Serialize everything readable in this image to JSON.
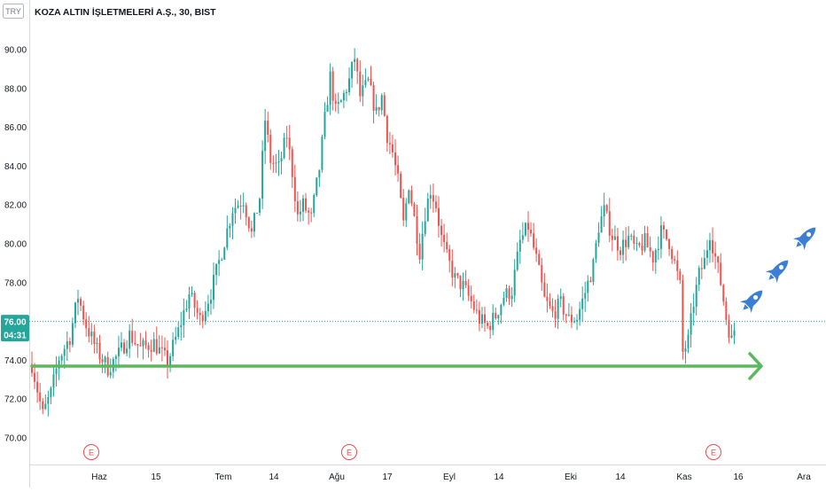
{
  "header": {
    "currency": "TRY",
    "symbol_title": "KOZA ALTIN İŞLETMELERİ A.Ş., 30, BIST"
  },
  "price_tag": {
    "last_price": "76.00",
    "countdown": "04:31"
  },
  "earnings_markers": [
    {
      "label": "E",
      "date": "Haz ~3"
    },
    {
      "label": "E",
      "date": "Ağu ~1"
    },
    {
      "label": "E",
      "date": "Kas ~10"
    }
  ],
  "colors": {
    "up": "#26a69a",
    "down": "#ef5350",
    "last_price_line": "#26a69a",
    "support_arrow": "#5cb85c",
    "rocket": "#3a7fd5",
    "earnings": "#f04a4a",
    "axis_text": "#131722",
    "grid": "#ffffff"
  },
  "chart_data": {
    "type": "candlestick",
    "title": "KOZA ALTIN İŞLETMELERİ A.Ş., 30, BIST",
    "interval": "30",
    "ylabel": "",
    "xlabel": "",
    "ylim": [
      69.0,
      91.8
    ],
    "y_ticks": [
      "70.00",
      "72.00",
      "74.00",
      "76.00",
      "78.00",
      "80.00",
      "82.00",
      "84.00",
      "86.00",
      "88.00",
      "90.00"
    ],
    "x_ticks": [
      "Haz",
      "15",
      "Tem",
      "14",
      "Ağu",
      "17",
      "Eyl",
      "14",
      "Eki",
      "14",
      "Kas",
      "16",
      "Ara"
    ],
    "last_price": 76.0,
    "support_level": 73.7,
    "price_path": [
      {
        "x": 0,
        "y": 73.8
      },
      {
        "x": 4,
        "y": 71.2
      },
      {
        "x": 7,
        "y": 72.3
      },
      {
        "x": 10,
        "y": 74.1
      },
      {
        "x": 14,
        "y": 75.2
      },
      {
        "x": 17,
        "y": 77.3
      },
      {
        "x": 20,
        "y": 75.8
      },
      {
        "x": 24,
        "y": 74.5
      },
      {
        "x": 28,
        "y": 73.6
      },
      {
        "x": 32,
        "y": 74.3
      },
      {
        "x": 36,
        "y": 75.3
      },
      {
        "x": 40,
        "y": 74.6
      },
      {
        "x": 45,
        "y": 74.9
      },
      {
        "x": 50,
        "y": 73.9
      },
      {
        "x": 54,
        "y": 75.5
      },
      {
        "x": 58,
        "y": 77.4
      },
      {
        "x": 62,
        "y": 76.1
      },
      {
        "x": 66,
        "y": 77.5
      },
      {
        "x": 70,
        "y": 79.6
      },
      {
        "x": 74,
        "y": 81.8
      },
      {
        "x": 78,
        "y": 82.3
      },
      {
        "x": 81,
        "y": 80.5
      },
      {
        "x": 84,
        "y": 82.4
      },
      {
        "x": 86,
        "y": 86.4
      },
      {
        "x": 88,
        "y": 84.3
      },
      {
        "x": 91,
        "y": 83.9
      },
      {
        "x": 94,
        "y": 85.6
      },
      {
        "x": 96,
        "y": 83.7
      },
      {
        "x": 98,
        "y": 81.4
      },
      {
        "x": 100,
        "y": 82.0
      },
      {
        "x": 103,
        "y": 81.3
      },
      {
        "x": 106,
        "y": 83.9
      },
      {
        "x": 108,
        "y": 86.4
      },
      {
        "x": 110,
        "y": 88.6
      },
      {
        "x": 112,
        "y": 86.8
      },
      {
        "x": 114,
        "y": 87.3
      },
      {
        "x": 117,
        "y": 88.4
      },
      {
        "x": 119,
        "y": 89.6
      },
      {
        "x": 121,
        "y": 87.6
      },
      {
        "x": 124,
        "y": 88.3
      },
      {
        "x": 127,
        "y": 86.7
      },
      {
        "x": 129,
        "y": 87.6
      },
      {
        "x": 131,
        "y": 85.6
      },
      {
        "x": 133,
        "y": 84.7
      },
      {
        "x": 135,
        "y": 83.2
      },
      {
        "x": 137,
        "y": 81.0
      },
      {
        "x": 139,
        "y": 83.1
      },
      {
        "x": 141,
        "y": 81.3
      },
      {
        "x": 143,
        "y": 79.6
      },
      {
        "x": 145,
        "y": 81.6
      },
      {
        "x": 147,
        "y": 82.8
      },
      {
        "x": 149,
        "y": 82.0
      },
      {
        "x": 151,
        "y": 80.3
      },
      {
        "x": 153,
        "y": 79.3
      },
      {
        "x": 156,
        "y": 78.2
      },
      {
        "x": 159,
        "y": 77.8
      },
      {
        "x": 162,
        "y": 77.0
      },
      {
        "x": 165,
        "y": 76.1
      },
      {
        "x": 168,
        "y": 75.7
      },
      {
        "x": 171,
        "y": 76.3
      },
      {
        "x": 174,
        "y": 77.3
      },
      {
        "x": 177,
        "y": 77.6
      },
      {
        "x": 180,
        "y": 80.1
      },
      {
        "x": 183,
        "y": 80.9
      },
      {
        "x": 186,
        "y": 79.2
      },
      {
        "x": 189,
        "y": 77.1
      },
      {
        "x": 192,
        "y": 76.4
      },
      {
        "x": 195,
        "y": 76.9
      },
      {
        "x": 198,
        "y": 76.1
      },
      {
        "x": 201,
        "y": 76.2
      },
      {
        "x": 204,
        "y": 77.5
      },
      {
        "x": 207,
        "y": 78.9
      },
      {
        "x": 209,
        "y": 80.9
      },
      {
        "x": 211,
        "y": 81.7
      },
      {
        "x": 214,
        "y": 80.4
      },
      {
        "x": 217,
        "y": 79.8
      },
      {
        "x": 220,
        "y": 80.3
      },
      {
        "x": 223,
        "y": 79.6
      },
      {
        "x": 226,
        "y": 80.1
      },
      {
        "x": 229,
        "y": 79.3
      },
      {
        "x": 232,
        "y": 80.6
      },
      {
        "x": 235,
        "y": 80.1
      },
      {
        "x": 237,
        "y": 79.0
      },
      {
        "x": 239,
        "y": 77.8
      },
      {
        "x": 240,
        "y": 74.4
      },
      {
        "x": 242,
        "y": 75.0
      },
      {
        "x": 244,
        "y": 77.0
      },
      {
        "x": 246,
        "y": 78.4
      },
      {
        "x": 248,
        "y": 79.1
      },
      {
        "x": 250,
        "y": 80.6
      },
      {
        "x": 252,
        "y": 79.3
      },
      {
        "x": 254,
        "y": 78.0
      },
      {
        "x": 256,
        "y": 76.2
      },
      {
        "x": 258,
        "y": 75.0
      },
      {
        "x": 259,
        "y": 75.6
      }
    ],
    "annotations": [
      "earnings markers E",
      "support arrow at 73.70",
      "three rocket icons"
    ]
  }
}
